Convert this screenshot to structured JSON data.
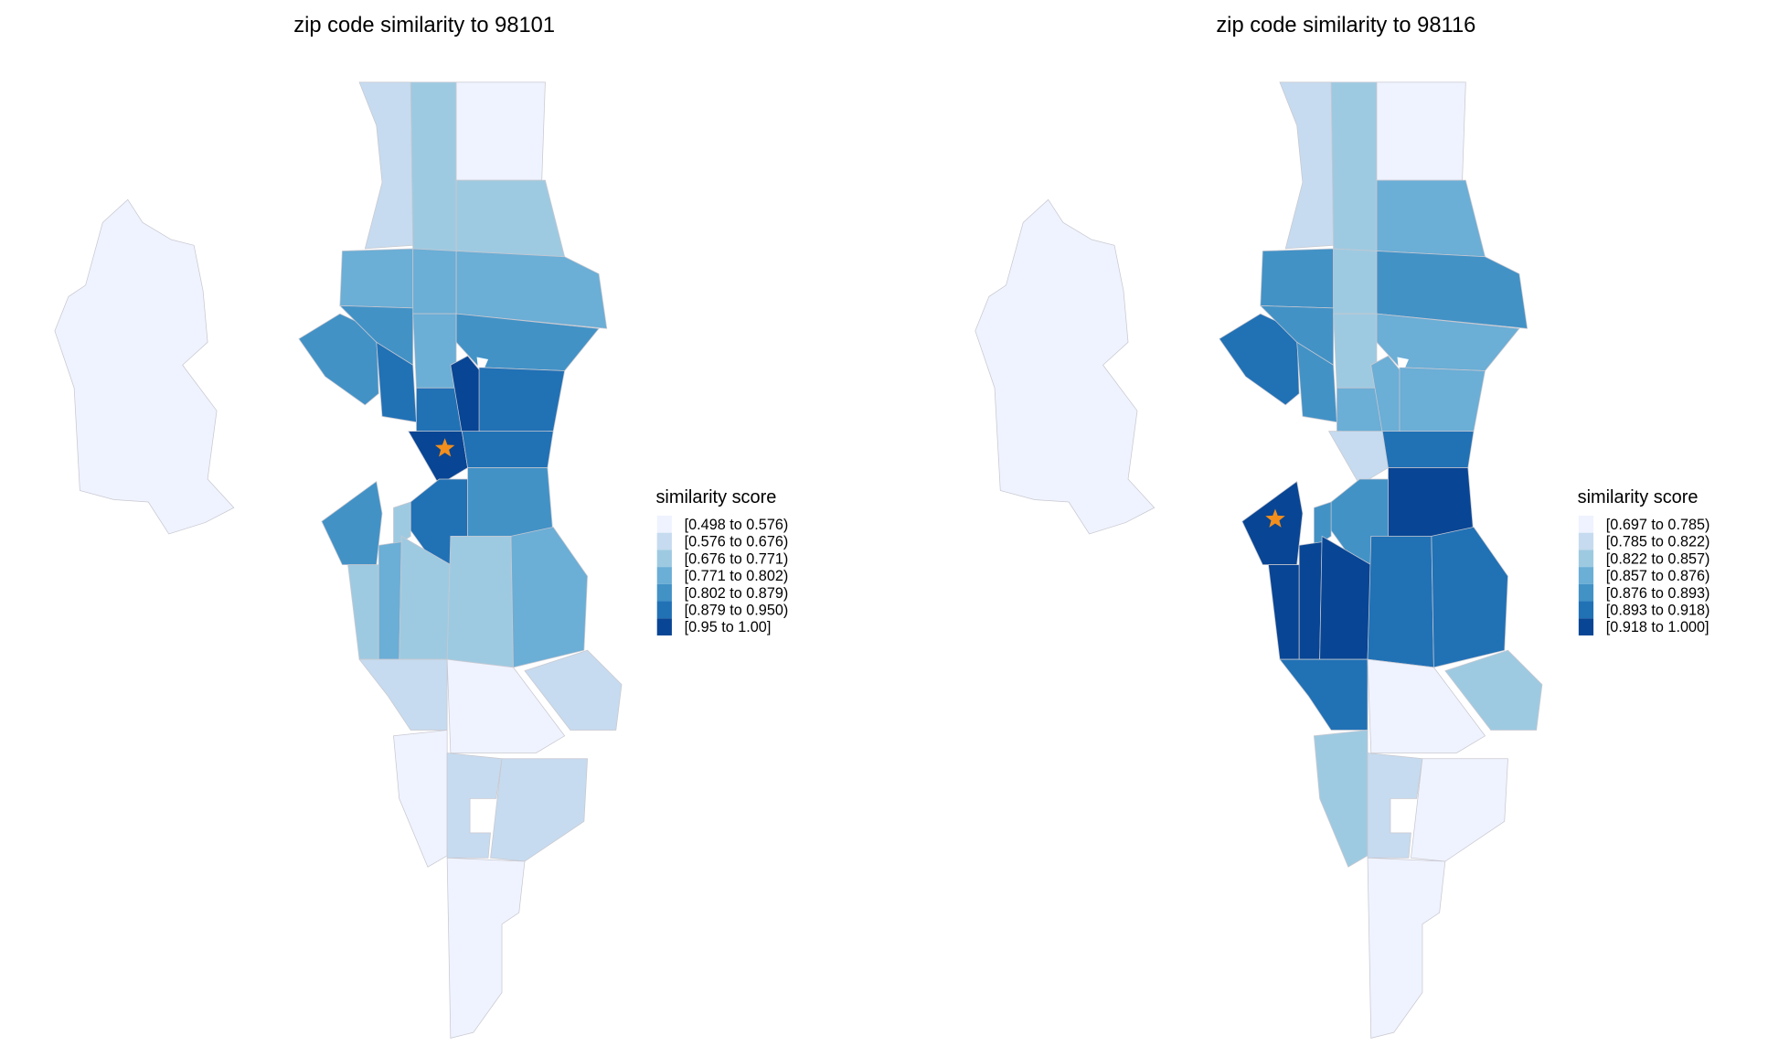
{
  "chart_data": [
    {
      "type": "choropleth",
      "title": "zip code similarity to 98101",
      "legend": {
        "title": "similarity score",
        "position": "right",
        "bins": [
          "[0.498 to 0.576)",
          "[0.576 to 0.676)",
          "[0.676 to 0.771)",
          "[0.771 to 0.802)",
          "[0.802 to 0.879)",
          "[0.879 to 0.950)",
          "[0.95 to 1.00]"
        ]
      },
      "region_bin_index": [
        1,
        2,
        0,
        2,
        3,
        3,
        3,
        4,
        4,
        5,
        3,
        4,
        5,
        6,
        5,
        6,
        5,
        5,
        4,
        4,
        2,
        2,
        3,
        2,
        2,
        3,
        1,
        0,
        1,
        0,
        1,
        1,
        0,
        0
      ],
      "marker": "star"
    },
    {
      "type": "choropleth",
      "title": "zip code similarity to 98116",
      "legend": {
        "title": "similarity score",
        "position": "right",
        "bins": [
          "[0.697 to 0.785)",
          "[0.785 to 0.822)",
          "[0.822 to 0.857)",
          "[0.857 to 0.876)",
          "[0.876 to 0.893)",
          "[0.893 to 0.918)",
          "[0.918 to 1.000]"
        ]
      },
      "region_bin_index": [
        1,
        2,
        0,
        3,
        4,
        2,
        4,
        5,
        4,
        4,
        2,
        3,
        3,
        3,
        3,
        1,
        5,
        4,
        6,
        6,
        4,
        6,
        6,
        6,
        5,
        5,
        5,
        0,
        2,
        2,
        1,
        0,
        0,
        0
      ],
      "marker": "star"
    }
  ],
  "colors": [
    "#eff3ff",
    "#c6dbef",
    "#9ecae1",
    "#6baed6",
    "#4292c6",
    "#2171b5",
    "#084594"
  ],
  "marker_color": "#f28e1c"
}
